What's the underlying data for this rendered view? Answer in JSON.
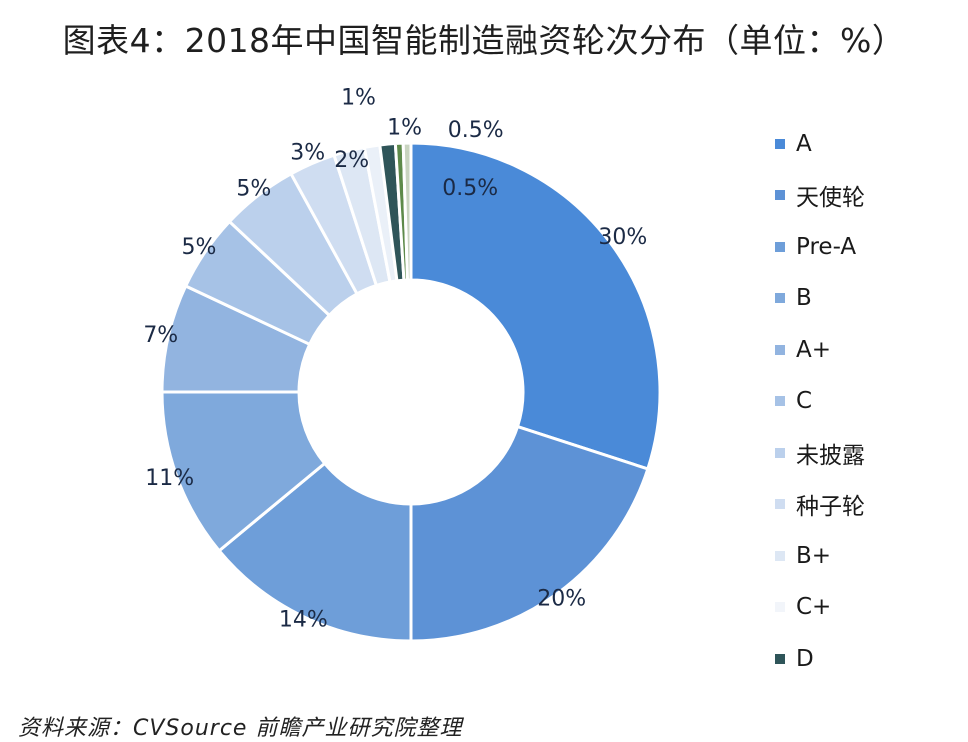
{
  "chart_data": {
    "type": "donut",
    "title": "图表4：2018年中国智能制造融资轮次分布（单位：%）",
    "source": "资料来源：CVSource  前瞻产业研究院整理",
    "legend_position": "right",
    "series": [
      {
        "name": "A",
        "value": 30,
        "label": "30%",
        "color": "#4a8ad8"
      },
      {
        "name": "天使轮",
        "value": 20,
        "label": "20%",
        "color": "#5d92d6"
      },
      {
        "name": "Pre-A",
        "value": 14,
        "label": "14%",
        "color": "#6e9ed9"
      },
      {
        "name": "B",
        "value": 11,
        "label": "11%",
        "color": "#7fa9dc"
      },
      {
        "name": "A+",
        "value": 7,
        "label": "7%",
        "color": "#92b4e0"
      },
      {
        "name": "C",
        "value": 5,
        "label": "5%",
        "color": "#a6c2e6"
      },
      {
        "name": "未披露",
        "value": 5,
        "label": "5%",
        "color": "#bbd0ec"
      },
      {
        "name": "种子轮",
        "value": 3,
        "label": "3%",
        "color": "#cfddf1"
      },
      {
        "name": "B+",
        "value": 2,
        "label": "2%",
        "color": "#dde7f4"
      },
      {
        "name": "C+",
        "value": 1,
        "label": "1%",
        "color": "#eaf0f8"
      },
      {
        "name": "D",
        "value": 1,
        "label": "1%",
        "color": "#2f5559"
      },
      {
        "name": "",
        "value": 0.5,
        "label": "0.5%",
        "color": "#5e8a4a"
      },
      {
        "name": "",
        "value": 0.5,
        "label": "0.5%",
        "color": "#c9d4c0"
      }
    ]
  }
}
